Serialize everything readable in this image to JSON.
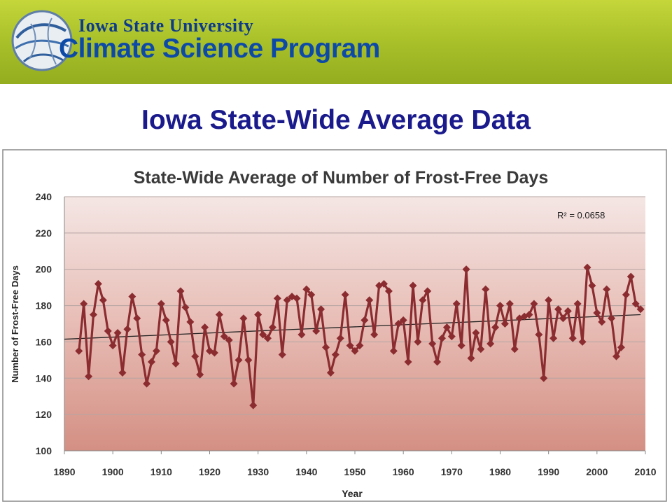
{
  "header": {
    "university": "Iowa State University",
    "program": "Climate Science Program",
    "logo": "globe-swirl-logo"
  },
  "slide": {
    "title": "Iowa State-Wide Average Data"
  },
  "chart_data": {
    "type": "line",
    "title": "State-Wide Average of Number of Frost-Free Days",
    "xlabel": "Year",
    "ylabel": "Number of Frost-Free Days",
    "xlim": [
      1890,
      2010
    ],
    "ylim": [
      100,
      240
    ],
    "xticks": [
      1890,
      1900,
      1910,
      1920,
      1930,
      1940,
      1950,
      1960,
      1970,
      1980,
      1990,
      2000,
      2010
    ],
    "yticks": [
      100,
      120,
      140,
      160,
      180,
      200,
      220,
      240
    ],
    "grid": true,
    "legend": "none",
    "annotation": "R² = 0.0658",
    "series_color": "#8b2c30",
    "trendline": {
      "x": [
        1890,
        2009
      ],
      "y": [
        161.5,
        175
      ]
    },
    "series": [
      {
        "x": [
          1893,
          1894,
          1895,
          1896,
          1897,
          1898,
          1899,
          1900,
          1901,
          1902,
          1903,
          1904,
          1905,
          1906,
          1907,
          1908,
          1909,
          1910,
          1911,
          1912,
          1913,
          1914,
          1915,
          1916,
          1917,
          1918,
          1919,
          1920,
          1921,
          1922,
          1923,
          1924,
          1925,
          1926,
          1927,
          1928,
          1929,
          1930,
          1931,
          1932,
          1933,
          1934,
          1935,
          1936,
          1937,
          1938,
          1939,
          1940,
          1941,
          1942,
          1943,
          1944,
          1945,
          1946,
          1947,
          1948,
          1949,
          1950,
          1951,
          1952,
          1953,
          1954,
          1955,
          1956,
          1957,
          1958,
          1959,
          1960,
          1961,
          1962,
          1963,
          1964,
          1965,
          1966,
          1967,
          1968,
          1969,
          1970,
          1971,
          1972,
          1973,
          1974,
          1975,
          1976,
          1977,
          1978,
          1979,
          1980,
          1981,
          1982,
          1983,
          1984,
          1985,
          1986,
          1987,
          1988,
          1989,
          1990,
          1991,
          1992,
          1993,
          1994,
          1995,
          1996,
          1997,
          1998,
          1999,
          2000,
          2001,
          2002,
          2003,
          2004,
          2005,
          2006,
          2007,
          2008,
          2009
        ],
        "values": [
          155,
          181,
          141,
          175,
          192,
          183,
          166,
          158,
          165,
          143,
          167,
          185,
          173,
          153,
          137,
          149,
          155,
          181,
          172,
          160,
          148,
          188,
          179,
          171,
          152,
          142,
          168,
          155,
          154,
          175,
          163,
          161,
          137,
          150,
          173,
          150,
          125,
          175,
          164,
          162,
          168,
          184,
          153,
          183,
          185,
          184,
          164,
          189,
          186,
          166,
          178,
          157,
          143,
          153,
          162,
          186,
          158,
          155,
          158,
          172,
          183,
          164,
          191,
          192,
          188,
          155,
          170,
          172,
          149,
          191,
          160,
          183,
          188,
          159,
          149,
          162,
          168,
          163,
          181,
          158,
          200,
          151,
          165,
          156,
          189,
          159,
          168,
          180,
          170,
          181,
          156,
          173,
          174,
          175,
          181,
          164,
          140,
          183,
          162,
          178,
          173,
          177,
          162,
          181,
          160,
          201,
          191,
          176,
          171,
          189,
          173,
          152,
          157,
          186,
          196,
          181,
          178
        ]
      }
    ]
  }
}
